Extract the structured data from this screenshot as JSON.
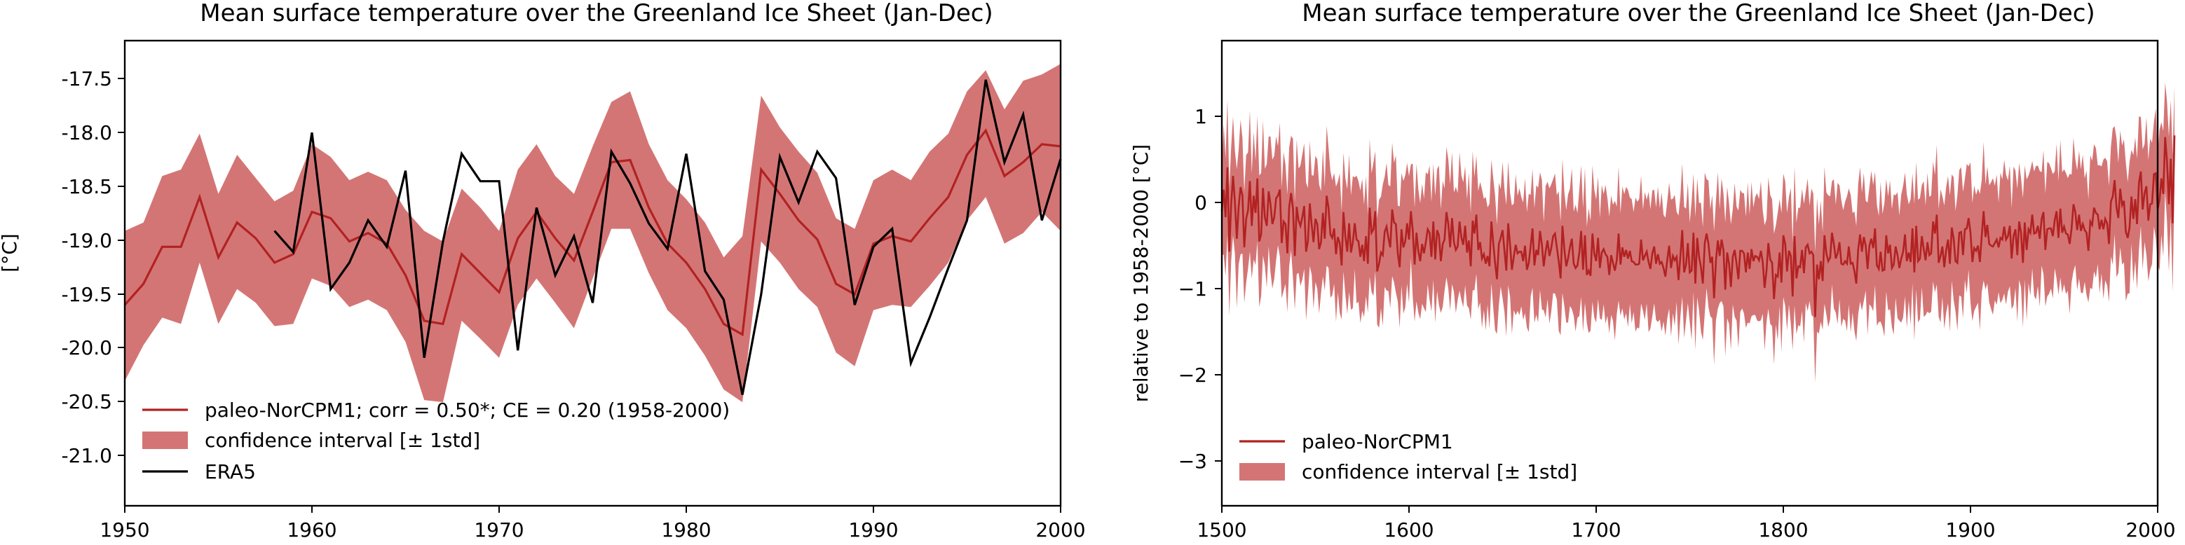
{
  "colors": {
    "model_line": "#b22222",
    "band_fill": "#d47575",
    "era5_line": "#000000"
  },
  "chart_data": [
    {
      "type": "line",
      "title": "Mean surface temperature over the Greenland Ice Sheet (Jan-Dec)",
      "xlabel": "",
      "ylabel": "[°C]",
      "xlim": [
        1950,
        2000
      ],
      "ylim": [
        -21.5,
        -17.1
      ],
      "xticks": [
        "1950",
        "1960",
        "1970",
        "1980",
        "1990",
        "2000"
      ],
      "yticks": [
        "-17.5",
        "-18.0",
        "-18.5",
        "-19.0",
        "-19.5",
        "-20.0",
        "-20.5",
        "-21.0"
      ],
      "grid": false,
      "legend_position": "lower-left",
      "legend": {
        "model": "paleo-NorCPM1; corr = 0.50*; CE = 0.20 (1958-2000)",
        "band": "confidence interval [± 1std]",
        "era5": "ERA5"
      },
      "x": [
        1950,
        1951,
        1952,
        1953,
        1954,
        1955,
        1956,
        1957,
        1958,
        1959,
        1960,
        1961,
        1962,
        1963,
        1964,
        1965,
        1966,
        1967,
        1968,
        1969,
        1970,
        1971,
        1972,
        1973,
        1974,
        1975,
        1976,
        1977,
        1978,
        1979,
        1980,
        1981,
        1982,
        1983,
        1984,
        1985,
        1986,
        1987,
        1988,
        1989,
        1990,
        1991,
        1992,
        1993,
        1994,
        1995,
        1996,
        1997,
        1998,
        1999,
        2000
      ],
      "series": [
        {
          "name": "paleo-NorCPM1; corr = 0.50*; CE = 0.20 (1958-2000)",
          "values": [
            -19.6,
            -19.4,
            -19.05,
            -19.05,
            -18.58,
            -19.15,
            -18.82,
            -18.97,
            -19.2,
            -19.12,
            -18.72,
            -18.78,
            -19.0,
            -18.92,
            -19.02,
            -19.32,
            -19.75,
            -19.78,
            -19.12,
            -19.3,
            -19.48,
            -18.97,
            -18.72,
            -18.97,
            -19.18,
            -18.72,
            -18.25,
            -18.23,
            -18.68,
            -19.02,
            -19.2,
            -19.45,
            -19.78,
            -19.88,
            -18.32,
            -18.55,
            -18.8,
            -18.98,
            -19.4,
            -19.5,
            -19.02,
            -18.95,
            -19.0,
            -18.78,
            -18.58,
            -18.18,
            -17.95,
            -18.38,
            -18.25,
            -18.08,
            -18.1
          ],
          "upper": [
            -18.9,
            -18.82,
            -18.38,
            -18.32,
            -17.98,
            -18.55,
            -18.18,
            -18.4,
            -18.62,
            -18.52,
            -18.08,
            -18.2,
            -18.42,
            -18.34,
            -18.42,
            -18.7,
            -18.9,
            -19.0,
            -18.5,
            -18.68,
            -18.9,
            -18.32,
            -18.08,
            -18.38,
            -18.55,
            -18.1,
            -17.68,
            -17.58,
            -18.08,
            -18.42,
            -18.6,
            -18.82,
            -19.15,
            -18.95,
            -17.62,
            -17.92,
            -18.15,
            -18.35,
            -18.78,
            -18.88,
            -18.42,
            -18.32,
            -18.42,
            -18.15,
            -17.98,
            -17.58,
            -17.38,
            -17.75,
            -17.48,
            -17.42,
            -17.32
          ],
          "lower": [
            -20.32,
            -19.98,
            -19.72,
            -19.78,
            -19.2,
            -19.78,
            -19.45,
            -19.58,
            -19.8,
            -19.78,
            -19.35,
            -19.42,
            -19.62,
            -19.55,
            -19.65,
            -19.95,
            -20.5,
            -20.52,
            -19.75,
            -19.92,
            -20.1,
            -19.6,
            -19.35,
            -19.58,
            -19.82,
            -19.35,
            -18.88,
            -18.88,
            -19.3,
            -19.65,
            -19.82,
            -20.08,
            -20.4,
            -20.52,
            -19.0,
            -19.2,
            -19.45,
            -19.62,
            -20.05,
            -20.18,
            -19.65,
            -19.6,
            -19.62,
            -19.42,
            -19.2,
            -18.8,
            -18.58,
            -19.02,
            -18.92,
            -18.72,
            -18.9
          ]
        },
        {
          "name": "ERA5",
          "x": [
            1958,
            1959,
            1960,
            1961,
            1962,
            1963,
            1964,
            1965,
            1966,
            1967,
            1968,
            1969,
            1970,
            1971,
            1972,
            1973,
            1974,
            1975,
            1976,
            1977,
            1978,
            1979,
            1980,
            1981,
            1982,
            1983,
            1984,
            1985,
            1986,
            1987,
            1988,
            1989,
            1990,
            1991,
            1992,
            1993,
            1994,
            1995,
            1996,
            1997,
            1998,
            1999,
            2000
          ],
          "values": [
            -18.9,
            -19.1,
            -17.97,
            -19.45,
            -19.2,
            -18.8,
            -19.05,
            -18.33,
            -20.1,
            -19.0,
            -18.17,
            -18.43,
            -18.43,
            -20.03,
            -18.68,
            -19.32,
            -18.95,
            -19.58,
            -18.15,
            -18.45,
            -18.83,
            -19.07,
            -18.17,
            -19.28,
            -19.55,
            -20.45,
            -19.5,
            -18.2,
            -18.63,
            -18.15,
            -18.4,
            -19.6,
            -19.05,
            -18.88,
            -20.15,
            -19.72,
            -19.25,
            -18.8,
            -17.47,
            -18.25,
            -17.8,
            -18.8,
            -18.22
          ]
        }
      ]
    },
    {
      "type": "line",
      "title": "Mean surface temperature over the Greenland Ice Sheet (Jan-Dec)",
      "xlabel": "",
      "ylabel": "relative to 1958-2000 [°C]",
      "xlim": [
        1500,
        2000
      ],
      "ylim": [
        -3.55,
        1.85
      ],
      "xticks": [
        "1500",
        "1600",
        "1700",
        "1800",
        "1900",
        "2000"
      ],
      "yticks": [
        "1",
        "0",
        "−1",
        "−2",
        "−3"
      ],
      "grid": false,
      "legend_position": "lower-left",
      "legend": {
        "model": "paleo-NorCPM1",
        "band": "confidence interval [± 1std]"
      },
      "x_start": 1500,
      "x_step": 1,
      "series": [
        {
          "name": "paleo-NorCPM1",
          "values": [
            -0.13,
            0.12,
            -0.2,
            0.38,
            -0.6,
            -0.05,
            0.28,
            -0.03,
            -0.45,
            -0.08,
            0.15,
            0.05,
            -0.55,
            -0.22,
            -0.12,
            0.22,
            -0.3,
            0.05,
            -0.15,
            0.25,
            -0.48,
            -0.4,
            0.14,
            -0.2,
            -0.3,
            0.1,
            -0.05,
            -0.28,
            -0.2,
            0.02,
            0.05,
            0.12,
            -0.5,
            -0.25,
            -0.28,
            -0.62,
            -0.08,
            0.08,
            -0.1,
            -0.65,
            -0.08,
            -0.24,
            -0.3,
            -0.2,
            -0.07,
            -0.6,
            -0.48,
            -0.04,
            -0.29,
            -0.49,
            -0.22,
            -0.28,
            -0.57,
            -0.49,
            -0.15,
            -0.45,
            0.05,
            -0.09,
            -0.4,
            -0.44,
            -0.33,
            -0.63,
            -0.43,
            -0.5,
            -0.76,
            -0.14,
            -0.42,
            -0.6,
            -0.27,
            -0.61,
            -0.49,
            -0.27,
            -0.46,
            -0.48,
            -0.66,
            -0.52,
            -0.71,
            -0.42,
            -0.74,
            -0.09,
            -0.38,
            -0.34,
            -0.13,
            -0.83,
            -0.74,
            -0.61,
            -0.64,
            -0.37,
            -0.31,
            -0.44,
            -0.55,
            -0.11,
            -0.26,
            -0.28,
            -0.62,
            -0.78,
            -0.34,
            -0.55,
            -0.48,
            -0.27,
            -0.46,
            -0.13,
            -0.35,
            -0.75,
            -0.38,
            -0.59,
            -0.71,
            -0.51,
            -0.62,
            -0.49,
            -0.34,
            -0.38,
            -0.66,
            -0.25,
            -0.69,
            -0.35,
            -0.41,
            -0.71,
            -0.51,
            -0.46,
            -0.14,
            -0.28,
            -0.55,
            -0.21,
            -0.49,
            -0.58,
            -0.54,
            -0.25,
            -0.44,
            -0.52,
            -0.3,
            -0.61,
            -0.47,
            -0.77,
            -0.24,
            -0.39,
            -0.17,
            -0.58,
            -0.49,
            -0.68,
            -0.63,
            -0.74,
            -0.65,
            -0.77,
            -0.25,
            -0.5,
            -0.73,
            -0.92,
            -0.51,
            -0.44,
            -0.35,
            -0.59,
            -0.82,
            -0.27,
            -0.52,
            -0.81,
            -0.66,
            -0.52,
            -0.62,
            -0.6,
            -0.6,
            -0.71,
            -0.53,
            -0.81,
            -0.73,
            -0.53,
            -0.33,
            -0.76,
            -0.58,
            -0.64,
            -0.36,
            -0.52,
            -0.77,
            -0.6,
            -0.47,
            -0.65,
            -0.56,
            -0.42,
            -0.39,
            -0.55,
            -0.71,
            -0.91,
            -0.3,
            -0.57,
            -0.77,
            -0.68,
            -0.55,
            -0.45,
            -0.74,
            -0.79,
            -0.76,
            -0.61,
            -0.36,
            -0.81,
            -0.41,
            -0.87,
            -0.82,
            -0.88,
            -0.39,
            -0.62,
            -0.71,
            -0.44,
            -0.79,
            -0.61,
            -0.57,
            -0.63,
            -0.66,
            -0.87,
            -0.64,
            -0.73,
            -0.82,
            -0.7,
            -0.39,
            -0.75,
            -0.55,
            -0.66,
            -0.58,
            -0.68,
            -0.59,
            -0.71,
            -0.72,
            -0.75,
            -0.75,
            -0.74,
            -0.46,
            -0.7,
            -0.65,
            -0.6,
            -0.72,
            -0.8,
            -0.62,
            -0.54,
            -0.74,
            -0.63,
            -0.74,
            -0.72,
            -0.79,
            -0.89,
            -0.69,
            -0.53,
            -0.79,
            -0.65,
            -0.7,
            -0.66,
            -0.93,
            -0.65,
            -0.35,
            -0.84,
            -0.75,
            -0.5,
            -0.84,
            -0.82,
            -0.38,
            -0.97,
            -0.44,
            -0.66,
            -0.78,
            -0.97,
            -0.5,
            -0.39,
            -0.51,
            -0.73,
            -0.66,
            -1.14,
            -0.7,
            -0.47,
            -0.65,
            -0.46,
            -0.58,
            -1.04,
            -0.61,
            -0.74,
            -1.01,
            -0.66,
            -0.58,
            -0.74,
            -0.92,
            -0.59,
            -0.59,
            -0.62,
            -0.84,
            -0.61,
            -0.8,
            -0.57,
            -0.71,
            -0.65,
            -0.66,
            -0.7,
            -0.59,
            -0.72,
            -1.02,
            -0.82,
            -0.5,
            -0.69,
            -0.73,
            -1.15,
            -0.87,
            -0.89,
            -0.61,
            -0.96,
            -0.41,
            -0.51,
            -0.83,
            -0.59,
            -0.65,
            -1.12,
            -0.42,
            -0.91,
            -0.77,
            -0.78,
            -0.58,
            -0.85,
            -0.55,
            -0.52,
            -0.62,
            -0.6,
            -0.64,
            -1.36,
            -0.75,
            -0.92,
            -0.71,
            -0.94,
            -0.41,
            -0.62,
            -0.71,
            -0.67,
            -0.38,
            -0.51,
            -0.68,
            -0.62,
            -0.49,
            -0.74,
            -0.75,
            -0.71,
            -0.74,
            -0.54,
            -0.74,
            -0.73,
            -0.83,
            -0.97,
            -0.57,
            -0.4,
            -0.6,
            -0.43,
            -0.53,
            -0.8,
            -0.53,
            -0.45,
            -0.56,
            -0.33,
            -0.76,
            -0.8,
            -0.6,
            -0.82,
            -0.81,
            -0.41,
            -0.62,
            -0.52,
            -0.79,
            -0.75,
            -0.54,
            -0.64,
            -0.79,
            -0.68,
            -0.6,
            -0.4,
            -0.71,
            -0.61,
            -0.72,
            -0.33,
            -0.84,
            -0.3,
            -0.71,
            -0.68,
            -0.42,
            -0.57,
            -0.7,
            -0.49,
            -0.64,
            -0.62,
            -0.25,
            -0.39,
            -0.17,
            -0.73,
            -0.65,
            -0.54,
            -0.78,
            -0.58,
            -0.46,
            -0.74,
            -0.32,
            -0.45,
            -0.71,
            -0.73,
            -0.38,
            -0.37,
            -0.64,
            -0.34,
            -0.33,
            -0.21,
            -0.38,
            -0.72,
            -0.56,
            -0.59,
            -0.53,
            -0.72,
            -0.42,
            -0.13,
            -0.43,
            -0.29,
            -0.51,
            -0.53,
            -0.54,
            -0.5,
            -0.46,
            -0.55,
            -0.44,
            -0.46,
            -0.31,
            -0.46,
            -0.42,
            -0.3,
            -0.68,
            -0.42,
            -0.34,
            -0.64,
            -0.25,
            -0.38,
            -0.73,
            -0.26,
            -0.58,
            -0.34,
            -0.38,
            -0.17,
            -0.39,
            -0.38,
            -0.3,
            -0.45,
            -0.22,
            -0.14,
            -0.58,
            -0.34,
            -0.33,
            -0.33,
            -0.42,
            -0.23,
            -0.13,
            -0.44,
            -0.1,
            -0.38,
            -0.31,
            -0.39,
            -0.4,
            -0.51,
            -0.33,
            -0.05,
            -0.14,
            -0.35,
            -0.17,
            -0.36,
            -0.28,
            -0.35,
            -0.38,
            -0.59,
            -0.25,
            -0.29,
            -0.09,
            -0.15,
            -0.17,
            -0.34,
            -0.23,
            -0.34,
            -0.22,
            -0.27,
            -0.51,
            -0.02,
            0.04,
            0.23,
            -0.09,
            -0.21,
            0.13,
            -0.06,
            -0.01,
            -0.37,
            -0.44,
            -0.32,
            0.04,
            -0.22,
            0.01,
            -0.28,
            0.2,
            0.33,
            -0.11,
            0.08,
            0.16,
            -0.24,
            -0.05,
            -0.04,
            0.3,
            0.31,
            -0.11,
            0.0,
            0.25,
            0.07,
            0.73,
            0.45,
            -0.05,
            0.48,
            -0.27,
            0.75
          ]
        }
      ]
    }
  ]
}
